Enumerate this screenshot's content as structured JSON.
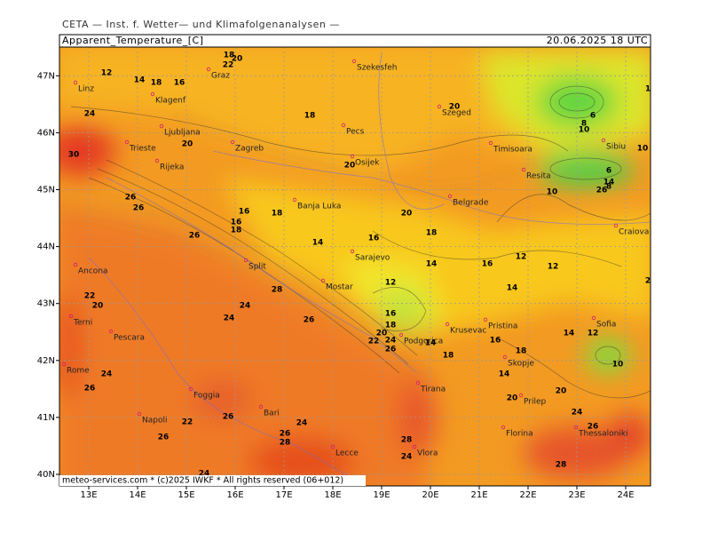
{
  "header": {
    "institute": "CETA — Inst. f. Wetter— und Klimafolgenanalysen —",
    "parameter": "Apparent_Temperature_[C]",
    "valid_time": "20.06.2025 18 UTC"
  },
  "footer": "meteo-services.com * (c)2025 IWKF * All rights reserved (06+012)",
  "lon_ticks": [
    {
      "value": 13,
      "label": "13E"
    },
    {
      "value": 14,
      "label": "14E"
    },
    {
      "value": 15,
      "label": "15E"
    },
    {
      "value": 16,
      "label": "16E"
    },
    {
      "value": 17,
      "label": "17E"
    },
    {
      "value": 18,
      "label": "18E"
    },
    {
      "value": 19,
      "label": "19E"
    },
    {
      "value": 20,
      "label": "20E"
    },
    {
      "value": 21,
      "label": "21E"
    },
    {
      "value": 22,
      "label": "22E"
    },
    {
      "value": 23,
      "label": "23E"
    },
    {
      "value": 24,
      "label": "24E"
    }
  ],
  "lat_ticks": [
    {
      "value": 40,
      "label": "40N"
    },
    {
      "value": 41,
      "label": "41N"
    },
    {
      "value": 42,
      "label": "42N"
    },
    {
      "value": 43,
      "label": "43N"
    },
    {
      "value": 44,
      "label": "44N"
    },
    {
      "value": 45,
      "label": "45N"
    },
    {
      "value": 46,
      "label": "46N"
    },
    {
      "value": 47,
      "label": "47N"
    }
  ],
  "cities": [
    "Linz",
    "Graz",
    "Szekesfeh",
    "Klagenf",
    "Ljubljana",
    "Zagreb",
    "Pecs",
    "Szeged",
    "Timisoara",
    "Trieste",
    "Rijeka",
    "Osijek",
    "Resita",
    "Sibiu",
    "Banja Luka",
    "Belgrade",
    "Craiova",
    "Sarajevo",
    "Ancona",
    "Split",
    "Mostar",
    "Terni",
    "Pescara",
    "Pristina",
    "Sofia",
    "Podgorica",
    "Krusevac",
    "Rome",
    "Skopje",
    "Foggia",
    "Tirana",
    "Prilep",
    "Napoli",
    "Bari",
    "Thessaloniki",
    "Florina",
    "Vlora",
    "Lecce"
  ],
  "contour_labels": [
    12,
    14,
    18,
    16,
    18,
    20,
    22,
    24,
    20,
    18,
    20,
    30,
    20,
    26,
    26,
    16,
    16,
    18,
    18,
    20,
    18,
    26,
    14,
    16,
    14,
    16,
    12,
    12,
    12,
    14,
    28,
    22,
    20,
    26,
    24,
    24,
    16,
    18,
    20,
    22,
    24,
    26,
    14,
    18,
    16,
    18,
    14,
    12,
    10,
    6,
    8,
    10,
    6,
    14,
    8,
    10,
    26,
    14,
    20,
    20,
    24,
    26,
    24,
    26,
    22,
    26,
    26,
    24,
    26,
    28,
    28,
    24,
    28,
    24,
    2,
    1,
    10
  ]
}
